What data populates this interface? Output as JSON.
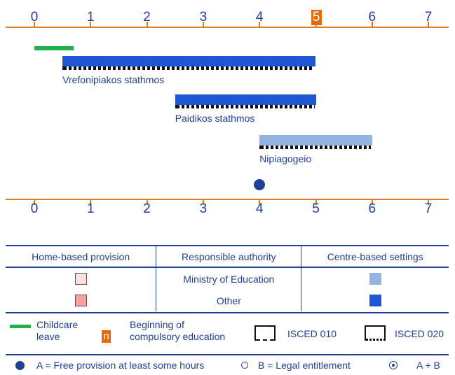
{
  "axis": {
    "ticks": [
      "0",
      "1",
      "2",
      "3",
      "4",
      "5",
      "6",
      "7"
    ],
    "highlight_tick": "5",
    "color": "#e07a1f",
    "highlight_color": "#e36c09"
  },
  "childcare_leave": {
    "from": 0,
    "to": 0.7,
    "color": "#1db04b"
  },
  "settings": [
    {
      "name": "Vrefonipiakos stathmos",
      "from": 0.5,
      "to": 5,
      "color": "#2055d6",
      "isced": "ISCED 020"
    },
    {
      "name": "Paidikos stathmos",
      "from": 2.5,
      "to": 5,
      "color": "#2055d6",
      "isced": "ISCED 020"
    },
    {
      "name": "Nipiagogeio",
      "from": 4,
      "to": 6,
      "color": "#91b4e0",
      "isced": "ISCED 020"
    }
  ],
  "free_provision_age": 4,
  "legend": {
    "headers": [
      "Home-based provision",
      "Responsible authority",
      "Centre-based settings"
    ],
    "rows": [
      {
        "authority": "Ministry of Education",
        "home_color": "#fde0e0",
        "centre_color": "#91b4e0"
      },
      {
        "authority": "Other",
        "home_color": "#f4a0a0",
        "centre_color": "#2055d6"
      }
    ],
    "childcare_leave_line1": "Childcare",
    "childcare_leave_line2": "leave",
    "compulsory_marker": "n",
    "compulsory_line1": "Beginning of",
    "compulsory_line2": "compulsory education",
    "isced010": "ISCED 010",
    "isced020": "ISCED 020",
    "free_provision": "A = Free provision at least some hours",
    "legal_entitlement": "B = Legal entitlement",
    "both": "A + B"
  }
}
